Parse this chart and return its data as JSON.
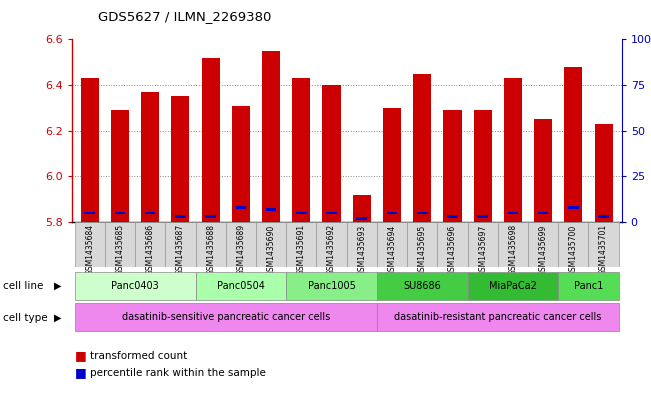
{
  "title": "GDS5627 / ILMN_2269380",
  "samples": [
    "GSM1435684",
    "GSM1435685",
    "GSM1435686",
    "GSM1435687",
    "GSM1435688",
    "GSM1435689",
    "GSM1435690",
    "GSM1435691",
    "GSM1435692",
    "GSM1435693",
    "GSM1435694",
    "GSM1435695",
    "GSM1435696",
    "GSM1435697",
    "GSM1435698",
    "GSM1435699",
    "GSM1435700",
    "GSM1435701"
  ],
  "transformed_count": [
    6.43,
    6.29,
    6.37,
    6.35,
    6.52,
    6.31,
    6.55,
    6.43,
    6.4,
    5.92,
    6.3,
    6.45,
    6.29,
    6.29,
    6.43,
    6.25,
    6.48,
    6.23
  ],
  "percentile_rank": [
    5,
    5,
    5,
    3,
    3,
    8,
    7,
    5,
    5,
    2,
    5,
    5,
    3,
    3,
    5,
    5,
    8,
    3
  ],
  "y_min": 5.8,
  "y_max": 6.6,
  "y_ticks": [
    5.8,
    6.0,
    6.2,
    6.4,
    6.6
  ],
  "right_y_ticks": [
    0,
    25,
    50,
    75,
    100
  ],
  "right_y_labels": [
    "0",
    "25",
    "50",
    "75",
    "100%"
  ],
  "bar_color": "#cc0000",
  "percentile_color": "#0000cc",
  "bar_width": 0.6,
  "cell_lines": [
    {
      "name": "Panc0403",
      "start": 0,
      "end": 3,
      "color": "#ccffcc"
    },
    {
      "name": "Panc0504",
      "start": 4,
      "end": 6,
      "color": "#aaffaa"
    },
    {
      "name": "Panc1005",
      "start": 7,
      "end": 9,
      "color": "#88ee88"
    },
    {
      "name": "SU8686",
      "start": 10,
      "end": 12,
      "color": "#44cc44"
    },
    {
      "name": "MiaPaCa2",
      "start": 13,
      "end": 15,
      "color": "#33bb33"
    },
    {
      "name": "Panc1",
      "start": 16,
      "end": 17,
      "color": "#55dd55"
    }
  ],
  "cell_types": [
    {
      "name": "dasatinib-sensitive pancreatic cancer cells",
      "start": 0,
      "end": 9,
      "color": "#ee88ee"
    },
    {
      "name": "dasatinib-resistant pancreatic cancer cells",
      "start": 10,
      "end": 17,
      "color": "#ee88ee"
    }
  ],
  "legend_items": [
    {
      "label": "transformed count",
      "color": "#cc0000"
    },
    {
      "label": "percentile rank within the sample",
      "color": "#0000cc"
    }
  ],
  "background_color": "#ffffff",
  "grid_color": "#888888",
  "axis_color_left": "#cc0000",
  "axis_color_right": "#0000bb"
}
